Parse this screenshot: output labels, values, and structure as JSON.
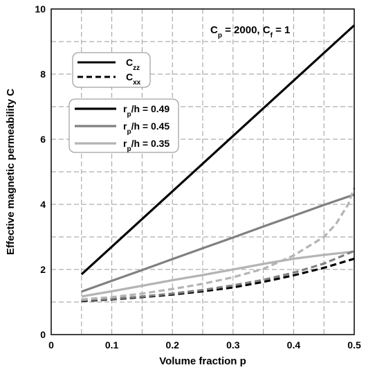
{
  "chart_data": {
    "type": "line",
    "xlabel": "Volume fraction p",
    "ylabel": "Effective magnetic permeability C",
    "xlim": [
      0,
      0.5
    ],
    "ylim": [
      0,
      10
    ],
    "xticks": [
      "0",
      "0.1",
      "0.2",
      "0.3",
      "0.4",
      "0.5"
    ],
    "yticks": [
      "0",
      "2",
      "4",
      "6",
      "8",
      "10"
    ],
    "grid": true,
    "annotation": {
      "parts": [
        {
          "t": "C",
          "sub": false
        },
        {
          "t": "p",
          "sub": true
        },
        {
          "t": " = 2000, C",
          "sub": false
        },
        {
          "t": "f",
          "sub": true
        },
        {
          "t": " = 1",
          "sub": false
        }
      ]
    },
    "style_legend": [
      {
        "base": "C",
        "sub": "zz",
        "dash": "solid"
      },
      {
        "base": "C",
        "sub": "xx",
        "dash": "dashed"
      }
    ],
    "color_legend": [
      {
        "base": "r",
        "sub": "p",
        "rest": "/h = 0.49",
        "color": "#000000"
      },
      {
        "base": "r",
        "sub": "p",
        "rest": "/h = 0.45",
        "color": "#808080"
      },
      {
        "base": "r",
        "sub": "p",
        "rest": "/h = 0.35",
        "color": "#b4b4b4"
      }
    ],
    "series": [
      {
        "group": "zz",
        "color": "#000000",
        "dash": "solid",
        "x": [
          0.05,
          0.5
        ],
        "y": [
          1.85,
          9.5
        ]
      },
      {
        "group": "zz",
        "color": "#808080",
        "dash": "solid",
        "x": [
          0.05,
          0.1,
          0.15,
          0.2,
          0.25,
          0.3,
          0.35,
          0.4,
          0.45,
          0.5
        ],
        "y": [
          1.32,
          1.65,
          1.98,
          2.32,
          2.65,
          2.98,
          3.32,
          3.65,
          3.98,
          4.3
        ]
      },
      {
        "group": "zz",
        "color": "#b4b4b4",
        "dash": "solid",
        "x": [
          0.05,
          0.1,
          0.15,
          0.2,
          0.25,
          0.3,
          0.35,
          0.4,
          0.45,
          0.5
        ],
        "y": [
          1.17,
          1.33,
          1.5,
          1.67,
          1.83,
          2.0,
          2.17,
          2.33,
          2.45,
          2.55
        ]
      },
      {
        "group": "xx",
        "color": "#000000",
        "dash": "dashed",
        "x": [
          0.05,
          0.1,
          0.15,
          0.2,
          0.25,
          0.3,
          0.35,
          0.4,
          0.45,
          0.5
        ],
        "y": [
          1.03,
          1.08,
          1.15,
          1.23,
          1.33,
          1.45,
          1.62,
          1.82,
          2.05,
          2.33
        ]
      },
      {
        "group": "xx",
        "color": "#808080",
        "dash": "dashed",
        "x": [
          0.05,
          0.1,
          0.15,
          0.2,
          0.25,
          0.3,
          0.35,
          0.4,
          0.45,
          0.5
        ],
        "y": [
          1.05,
          1.1,
          1.17,
          1.26,
          1.37,
          1.51,
          1.68,
          1.9,
          2.18,
          2.57
        ]
      },
      {
        "group": "xx",
        "color": "#b4b4b4",
        "dash": "dashed",
        "x": [
          0.05,
          0.1,
          0.15,
          0.2,
          0.25,
          0.3,
          0.35,
          0.4,
          0.45,
          0.47,
          0.49,
          0.5
        ],
        "y": [
          1.08,
          1.15,
          1.26,
          1.4,
          1.56,
          1.76,
          2.02,
          2.43,
          3.0,
          3.4,
          4.0,
          4.5
        ]
      }
    ]
  }
}
